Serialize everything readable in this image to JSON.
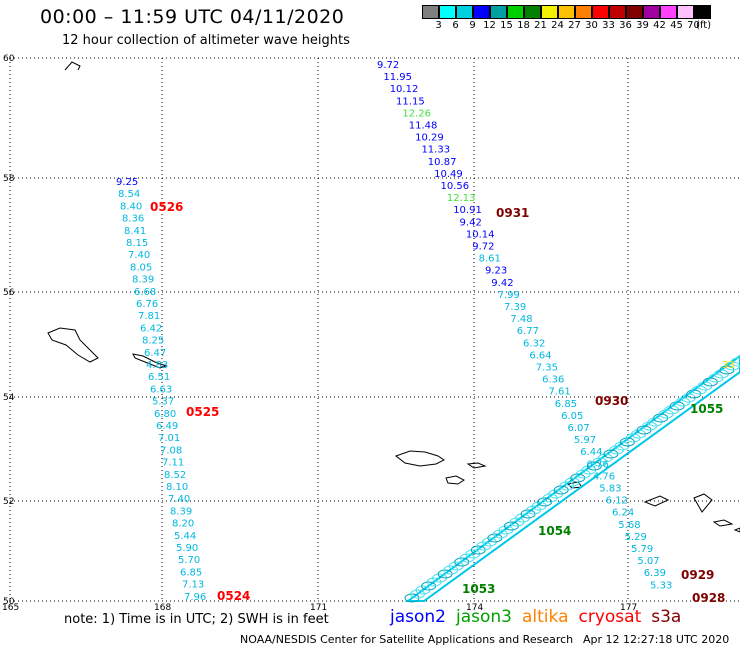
{
  "title": "00:00 – 11:59 UTC 04/11/2020",
  "subtitle": "12 hour collection of altimeter wave heights",
  "legend": {
    "colors": [
      "#7f7f7f",
      "#00ffff",
      "#00cfe0",
      "#0000ff",
      "#00a0a0",
      "#00d000",
      "#008000",
      "#f0f000",
      "#ffc000",
      "#ff8000",
      "#ff0000",
      "#c00000",
      "#800000",
      "#a000a0",
      "#ff40ff",
      "#ffc0ff",
      "#000000"
    ],
    "labels": [
      "3",
      "6",
      "9",
      "12",
      "15",
      "18",
      "21",
      "24",
      "27",
      "30",
      "33",
      "36",
      "39",
      "42",
      "45",
      "70"
    ],
    "unit": "(ft)"
  },
  "map": {
    "lat_labels": [
      "60",
      "58",
      "56",
      "54",
      "52",
      "50"
    ],
    "lon_labels": [
      "165",
      "168",
      "171",
      "174",
      "177"
    ],
    "track_jason_left": [
      "9.25",
      "8.54",
      "8.40",
      "8.36",
      "8.41",
      "8.15",
      "7.40",
      "8.05",
      "8.39",
      "6.68",
      "6.76",
      "7.81",
      "6.42",
      "8.25",
      "6.47",
      "4.83",
      "6.51",
      "6.63",
      "5.37",
      "6.80",
      "6.49",
      "7.01",
      "7.08",
      "7.11",
      "8.52",
      "8.10",
      "7.40",
      "8.39",
      "8.20",
      "5.44",
      "5.90",
      "5.70",
      "6.85",
      "7.13",
      "7.96"
    ],
    "track_center": [
      "9.72",
      "11.95",
      "10.12",
      "11.15",
      "12.26",
      "11.48",
      "10.29",
      "11.33",
      "10.87",
      "10.49",
      "10.56",
      "12.13",
      "10.91",
      "9.42",
      "10.14",
      "9.72",
      "8.61",
      "9.23",
      "9.42",
      "7.99",
      "7.39",
      "7.48",
      "6.77",
      "6.32",
      "6.64",
      "7.35",
      "6.36",
      "7.61",
      "6.85",
      "6.05",
      "6.07",
      "5.97",
      "6.44",
      "6.76",
      "4.76",
      "5.83",
      "6.12",
      "6.24",
      "5.68",
      "5.29",
      "5.79",
      "5.07",
      "6.39",
      "5.33"
    ],
    "time_labels": {
      "left_top": "0526",
      "left_mid": "0525",
      "left_bottom": "0524",
      "center_top": "0931",
      "center_mid": "0930",
      "right_1": "0929",
      "right_2": "0928"
    },
    "time_colors": {
      "red": "#ff0000",
      "darkred": "#800000"
    },
    "green_labels": [
      "1055",
      "1054",
      "1053"
    ],
    "s3a_tag": "33"
  },
  "note": "note: 1) Time is in UTC; 2) SWH is in feet",
  "satellites": [
    {
      "name": "jason2",
      "color": "#0000ff"
    },
    {
      "name": "jason3",
      "color": "#00a000"
    },
    {
      "name": "altika",
      "color": "#ff8000"
    },
    {
      "name": "cryosat",
      "color": "#ff0000"
    },
    {
      "name": "s3a",
      "color": "#800000"
    }
  ],
  "footer": {
    "credit": "NOAA/NESDIS Center for Satellite Applications and Research",
    "timestamp": "Apr 12 12:27:18 UTC 2020"
  }
}
